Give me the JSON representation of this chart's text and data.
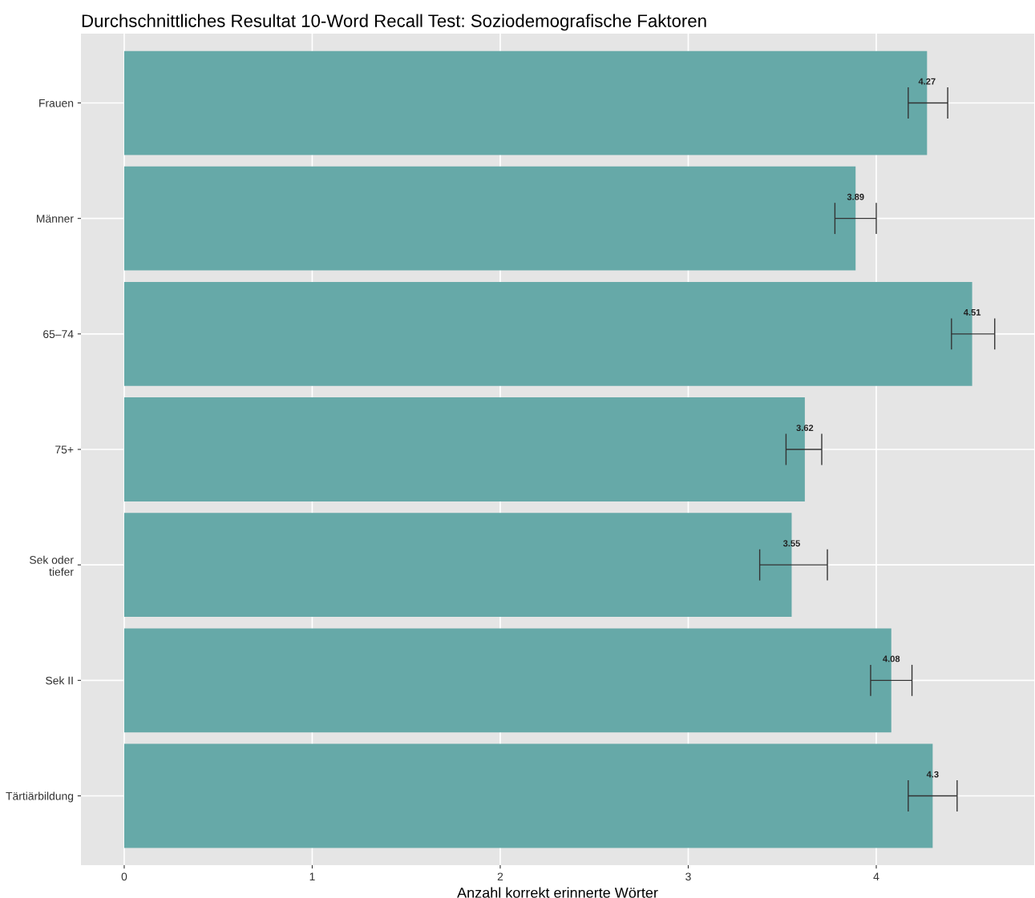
{
  "chart_data": {
    "type": "bar",
    "orientation": "horizontal",
    "title": "Durchschnittliches Resultat 10-Word Recall Test: Soziodemografische Faktoren",
    "xlabel": "Anzahl korrekt erinnerte Wörter",
    "categories": [
      "Frauen",
      "Männer",
      "65–74",
      "75+",
      "Sek oder\ntiefer",
      "Sek II",
      "Tärtiärbildung"
    ],
    "values": [
      4.27,
      3.89,
      4.51,
      3.62,
      3.55,
      4.08,
      4.3
    ],
    "errors": [
      [
        4.17,
        4.38
      ],
      [
        3.78,
        4.0
      ],
      [
        4.4,
        4.63
      ],
      [
        3.52,
        3.71
      ],
      [
        3.38,
        3.74
      ],
      [
        3.97,
        4.19
      ],
      [
        4.17,
        4.43
      ]
    ],
    "color": "#66a9a8",
    "data_labels": true,
    "grid": true,
    "legend": false,
    "xlim": [
      -0.23,
      4.84
    ],
    "xticks": [
      0,
      1,
      2,
      3,
      4
    ]
  }
}
